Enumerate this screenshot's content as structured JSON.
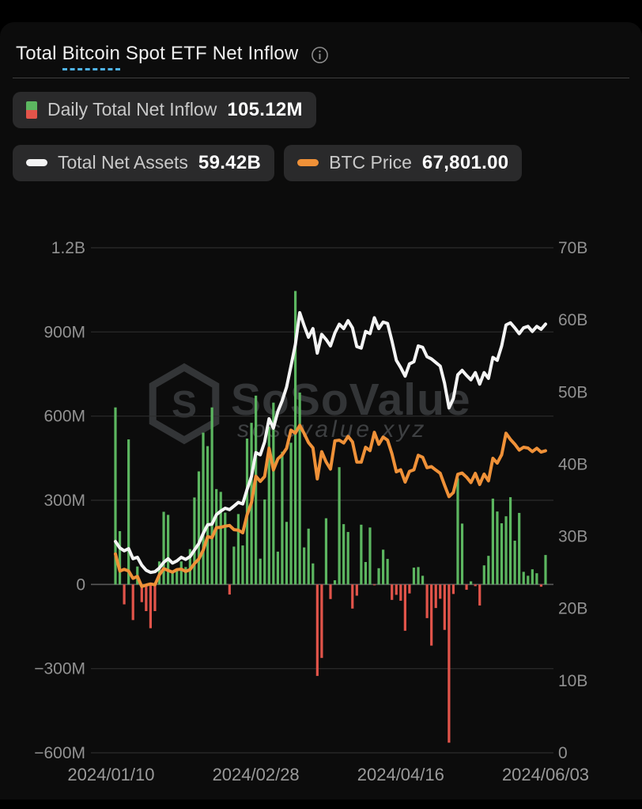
{
  "header": {
    "title": "Total Bitcoin Spot ETF Net Inflow",
    "title_parts": [
      "Total ",
      "Bitcoin",
      " Spot ETF Net Inflow"
    ],
    "info_icon": "circle-info-icon"
  },
  "legend": {
    "daily": {
      "label": "Daily Total Net Inflow",
      "value": "105.12M",
      "icon": "green-red-split-square"
    },
    "assets": {
      "label": "Total Net Assets",
      "value": "59.42B",
      "icon": "white-pill"
    },
    "price": {
      "label": "BTC Price",
      "value": "67,801.00",
      "icon": "orange-pill"
    }
  },
  "watermark": {
    "brand": "SoSoValue",
    "domain": "sosovalue.xyz",
    "logo": "hexagon-cube-logo"
  },
  "colors": {
    "bar_positive": "#5cb660",
    "bar_negative": "#e2544a",
    "assets_line": "#f4f4f4",
    "price_line": "#ef9138",
    "grid": "#2d2d2d",
    "zero_line": "#585858",
    "axis_text": "#919191",
    "x_axis_text": "#9a9a9a",
    "accent_underline": "#4fb3e8",
    "watermark_text": "#333537",
    "watermark_sub": "#3e4042",
    "badge_bg": "#2a2a2b"
  },
  "chart_data": {
    "type": "combo",
    "title": "Total Bitcoin Spot ETF Net Inflow",
    "grid": true,
    "left_axis": {
      "unit": "USD",
      "range_M": [
        -600,
        1200
      ],
      "ticks": [
        {
          "label": "1.2B",
          "value": 1200
        },
        {
          "label": "900M",
          "value": 900
        },
        {
          "label": "600M",
          "value": 600
        },
        {
          "label": "300M",
          "value": 300
        },
        {
          "label": "0",
          "value": 0
        },
        {
          "label": "−300M",
          "value": -300
        },
        {
          "label": "−600M",
          "value": -600
        }
      ]
    },
    "right_axis": {
      "unit": "USD",
      "range_B": [
        0,
        70
      ],
      "ticks": [
        {
          "label": "70B",
          "value": 70
        },
        {
          "label": "60B",
          "value": 60
        },
        {
          "label": "50B",
          "value": 50
        },
        {
          "label": "40B",
          "value": 40
        },
        {
          "label": "30B",
          "value": 30
        },
        {
          "label": "20B",
          "value": 20
        },
        {
          "label": "10B",
          "value": 10
        },
        {
          "label": "0",
          "value": 0
        }
      ]
    },
    "price_axis_range": [
      5000,
      110000
    ],
    "x_ticks": [
      {
        "label": "2024/01/10",
        "day_index": -1
      },
      {
        "label": "2024/02/28",
        "day_index": 32
      },
      {
        "label": "2024/04/16",
        "day_index": 65
      },
      {
        "label": "2024/06/03",
        "day_index": 98
      }
    ],
    "dates": [
      "2024-01-11",
      "2024-01-12",
      "2024-01-16",
      "2024-01-17",
      "2024-01-18",
      "2024-01-19",
      "2024-01-22",
      "2024-01-23",
      "2024-01-24",
      "2024-01-25",
      "2024-01-26",
      "2024-01-29",
      "2024-01-30",
      "2024-01-31",
      "2024-02-01",
      "2024-02-02",
      "2024-02-05",
      "2024-02-06",
      "2024-02-07",
      "2024-02-08",
      "2024-02-09",
      "2024-02-12",
      "2024-02-13",
      "2024-02-14",
      "2024-02-15",
      "2024-02-16",
      "2024-02-20",
      "2024-02-21",
      "2024-02-22",
      "2024-02-23",
      "2024-02-26",
      "2024-02-27",
      "2024-02-28",
      "2024-02-29",
      "2024-03-01",
      "2024-03-04",
      "2024-03-05",
      "2024-03-06",
      "2024-03-07",
      "2024-03-08",
      "2024-03-11",
      "2024-03-12",
      "2024-03-13",
      "2024-03-14",
      "2024-03-15",
      "2024-03-18",
      "2024-03-19",
      "2024-03-20",
      "2024-03-21",
      "2024-03-22",
      "2024-03-25",
      "2024-03-26",
      "2024-03-27",
      "2024-03-28",
      "2024-04-01",
      "2024-04-02",
      "2024-04-03",
      "2024-04-04",
      "2024-04-05",
      "2024-04-08",
      "2024-04-09",
      "2024-04-10",
      "2024-04-11",
      "2024-04-12",
      "2024-04-15",
      "2024-04-16",
      "2024-04-17",
      "2024-04-18",
      "2024-04-19",
      "2024-04-22",
      "2024-04-23",
      "2024-04-24",
      "2024-04-25",
      "2024-04-26",
      "2024-04-29",
      "2024-04-30",
      "2024-05-01",
      "2024-05-02",
      "2024-05-03",
      "2024-05-06",
      "2024-05-07",
      "2024-05-08",
      "2024-05-09",
      "2024-05-10",
      "2024-05-13",
      "2024-05-14",
      "2024-05-15",
      "2024-05-16",
      "2024-05-17",
      "2024-05-20",
      "2024-05-21",
      "2024-05-22",
      "2024-05-23",
      "2024-05-24",
      "2024-05-28",
      "2024-05-29",
      "2024-05-30",
      "2024-05-31",
      "2024-06-03"
    ],
    "series": [
      {
        "name": "Daily Total Net Inflow",
        "type": "bar",
        "axis": "left",
        "unit": "M USD",
        "latest": "105.12M",
        "values": [
          631,
          190,
          -71,
          517,
          -127,
          64,
          -63,
          -95,
          -156,
          -95,
          82,
          259,
          248,
          45,
          50,
          82,
          62,
          126,
          310,
          403,
          541,
          493,
          631,
          340,
          330,
          256,
          -36,
          135,
          251,
          139,
          520,
          576,
          673,
          92,
          303,
          562,
          648,
          117,
          473,
          223,
          505,
          1046,
          684,
          132,
          199,
          75,
          -326,
          -262,
          236,
          -52,
          15,
          418,
          215,
          187,
          -86,
          -40,
          213,
          80,
          203,
          -3,
          58,
          124,
          91,
          -55,
          -37,
          -58,
          -165,
          -32,
          60,
          62,
          31,
          -120,
          -218,
          -84,
          -51,
          -162,
          -564,
          -34,
          378,
          217,
          -19,
          11,
          -6,
          -75,
          68,
          102,
          306,
          260,
          218,
          243,
          311,
          156,
          255,
          45,
          31,
          54,
          40,
          -8,
          105
        ]
      },
      {
        "name": "Total Net Assets",
        "type": "line",
        "axis": "right",
        "unit": "B USD",
        "latest": "59.42B",
        "values": [
          29.3,
          28.4,
          28.0,
          28.3,
          26.9,
          27.1,
          26.0,
          25.3,
          25.0,
          25.1,
          25.6,
          26.4,
          26.9,
          26.3,
          26.6,
          27.1,
          26.8,
          27.2,
          28.1,
          29.0,
          30.4,
          31.6,
          31.7,
          33.0,
          33.5,
          33.9,
          33.7,
          34.2,
          34.7,
          34.5,
          36.5,
          38.3,
          41.6,
          41.3,
          43.1,
          46.3,
          45.0,
          47.3,
          48.8,
          50.7,
          53.6,
          56.6,
          61.0,
          59.2,
          57.6,
          58.8,
          55.4,
          58.0,
          57.3,
          56.4,
          58.2,
          59.4,
          58.8,
          59.9,
          58.9,
          56.3,
          56.1,
          58.4,
          58.1,
          60.3,
          58.8,
          59.7,
          59.5,
          57.1,
          54.4,
          53.4,
          52.2,
          53.9,
          54.2,
          56.4,
          56.2,
          54.9,
          54.6,
          54.1,
          53.6,
          51.2,
          47.8,
          49.1,
          52.4,
          53.0,
          52.3,
          51.7,
          52.7,
          51.1,
          52.7,
          51.9,
          54.8,
          54.4,
          56.4,
          59.3,
          59.6,
          58.9,
          58.1,
          58.9,
          59.1,
          58.4,
          59.1,
          58.7,
          59.42
        ]
      },
      {
        "name": "BTC Price",
        "type": "line",
        "axis": "hidden-price",
        "unit": "USD",
        "latest": "67,801.00",
        "values": [
          46340,
          42780,
          43130,
          42780,
          41280,
          41660,
          39570,
          39880,
          40110,
          39940,
          41980,
          43300,
          42920,
          42580,
          43080,
          43190,
          42710,
          43090,
          44330,
          45290,
          47130,
          49930,
          49740,
          51800,
          51890,
          52120,
          52270,
          51390,
          51300,
          50730,
          54480,
          57040,
          62500,
          61430,
          62440,
          68330,
          63800,
          66100,
          66940,
          68300,
          72080,
          71450,
          73080,
          71390,
          69500,
          68390,
          61940,
          67610,
          65500,
          63990,
          69880,
          69990,
          69420,
          70780,
          69650,
          65450,
          65440,
          68510,
          67840,
          71620,
          69140,
          70630,
          70010,
          67190,
          63420,
          63840,
          61280,
          63510,
          63840,
          66840,
          66430,
          64280,
          64500,
          63780,
          63110,
          60640,
          58250,
          59120,
          62900,
          63160,
          62310,
          61180,
          63090,
          60790,
          62940,
          61550,
          66220,
          65230,
          66960,
          71440,
          70150,
          69170,
          67930,
          68530,
          68360,
          67620,
          68320,
          67530,
          67801
        ]
      }
    ]
  }
}
